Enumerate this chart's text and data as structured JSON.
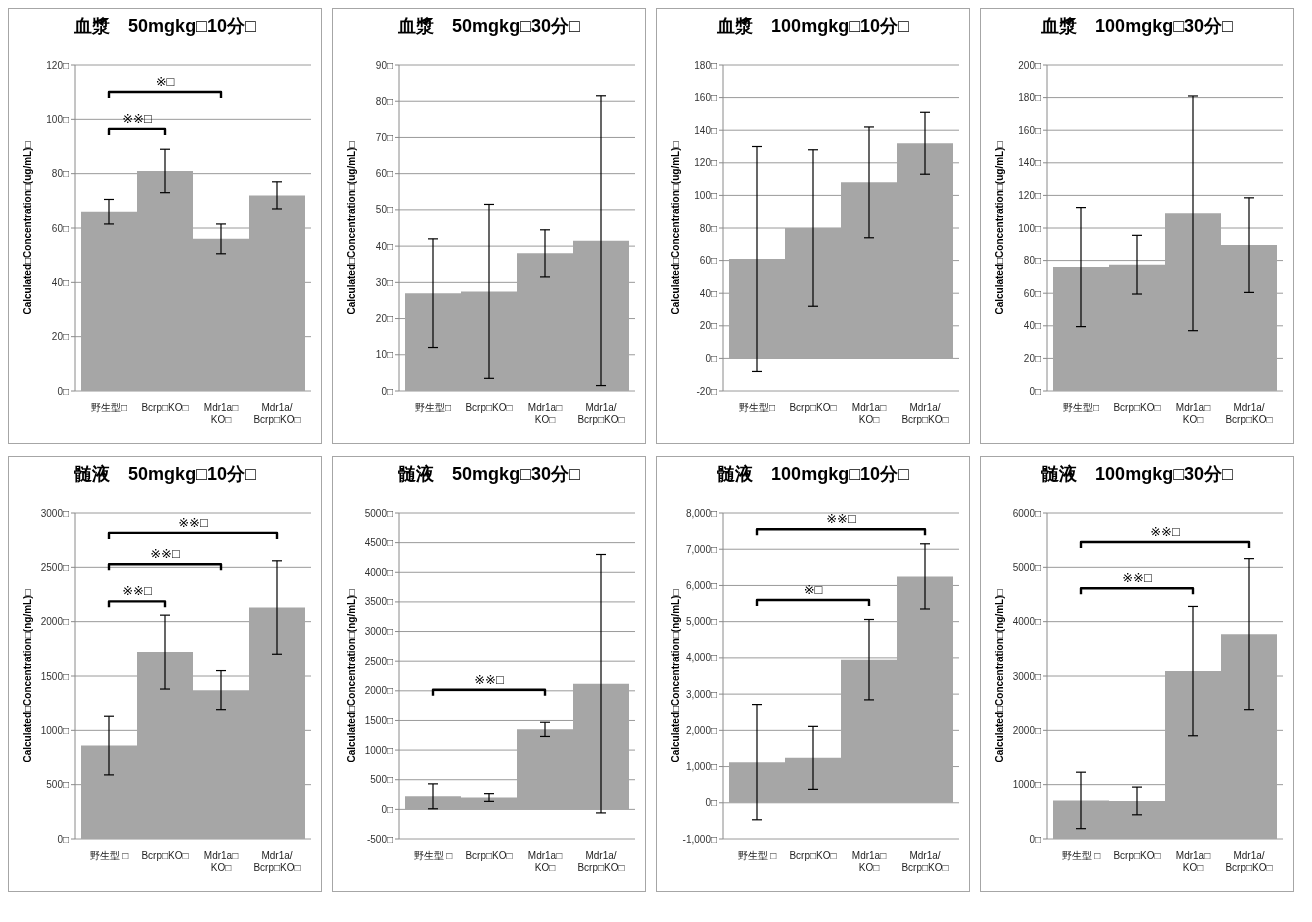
{
  "chart_data": [
    {
      "type": "bar",
      "title": "血漿　50mgkg□10分□",
      "ylabel": "Calculated□Concentration□(ug/mL)□",
      "categories": [
        "野生型□",
        "Bcrp□KO□",
        "Mdr1a□KO□",
        "Mdr1a/Bcrp□KO□"
      ],
      "values": [
        66,
        81,
        56,
        72
      ],
      "errors": [
        4.5,
        8,
        5.5,
        5
      ],
      "color": "#a6a6a6",
      "ylim": [
        0,
        120
      ],
      "yticks": [
        {
          "value": 0,
          "label": "0□"
        },
        {
          "value": 20,
          "label": "20□"
        },
        {
          "value": 40,
          "label": "40□"
        },
        {
          "value": 60,
          "label": "60□"
        },
        {
          "value": 80,
          "label": "80□"
        },
        {
          "value": 100,
          "label": "100□"
        },
        {
          "value": 120,
          "label": "120□"
        }
      ],
      "grid": "y",
      "annotations": [
        "※□",
        "※※□"
      ]
    },
    {
      "type": "bar",
      "title": "血漿　50mgkg□30分□",
      "ylabel": "Calculated□Concentration□(ug/mL)□",
      "categories": [
        "野生型□",
        "Bcrp□KO□",
        "Mdr1a□KO□",
        "Mdr1a/Bcrp□KO□"
      ],
      "values": [
        27,
        27.5,
        38,
        41.5
      ],
      "errors": [
        15,
        24,
        6.5,
        40
      ],
      "color": "#a6a6a6",
      "ylim": [
        0,
        90
      ],
      "yticks": [
        {
          "value": 0,
          "label": "0□"
        },
        {
          "value": 10,
          "label": "10□"
        },
        {
          "value": 20,
          "label": "20□"
        },
        {
          "value": 30,
          "label": "30□"
        },
        {
          "value": 40,
          "label": "40□"
        },
        {
          "value": 50,
          "label": "50□"
        },
        {
          "value": 60,
          "label": "60□"
        },
        {
          "value": 70,
          "label": "70□"
        },
        {
          "value": 80,
          "label": "80□"
        },
        {
          "value": 90,
          "label": "90□"
        }
      ],
      "grid": "y"
    },
    {
      "type": "bar",
      "title": "血漿　100mgkg□10分□",
      "ylabel": "Calculated□Concentration□(ug/mL)□",
      "categories": [
        "野生型□",
        "Bcrp□KO□",
        "Mdr1a□KO□",
        "Mdr1a/Bcrp□KO□"
      ],
      "values": [
        61,
        80,
        108,
        132
      ],
      "errors": [
        69,
        48,
        34,
        19
      ],
      "color": "#a6a6a6",
      "ylim": [
        -20,
        180
      ],
      "yticks": [
        {
          "value": -20,
          "label": "-20□"
        },
        {
          "value": 0,
          "label": "0□"
        },
        {
          "value": 20,
          "label": "20□"
        },
        {
          "value": 40,
          "label": "40□"
        },
        {
          "value": 60,
          "label": "60□"
        },
        {
          "value": 80,
          "label": "80□"
        },
        {
          "value": 100,
          "label": "100□"
        },
        {
          "value": 120,
          "label": "120□"
        },
        {
          "value": 140,
          "label": "140□"
        },
        {
          "value": 160,
          "label": "160□"
        },
        {
          "value": 180,
          "label": "180□"
        }
      ],
      "grid": "y"
    },
    {
      "type": "bar",
      "title": "血漿　100mgkg□30分□",
      "ylabel": "Calculated□Concentration□(ug/mL)□",
      "categories": [
        "野生型□",
        "Bcrp□KO□",
        "Mdr1a□KO□",
        "Mdr1a/Bcrp□KO□"
      ],
      "values": [
        76,
        77.5,
        109,
        89.5
      ],
      "errors": [
        36.5,
        18,
        72,
        29
      ],
      "color": "#a6a6a6",
      "ylim": [
        0,
        200
      ],
      "yticks": [
        {
          "value": 0,
          "label": "0□"
        },
        {
          "value": 20,
          "label": "20□"
        },
        {
          "value": 40,
          "label": "40□"
        },
        {
          "value": 60,
          "label": "60□"
        },
        {
          "value": 80,
          "label": "80□"
        },
        {
          "value": 100,
          "label": "100□"
        },
        {
          "value": 120,
          "label": "120□"
        },
        {
          "value": 140,
          "label": "140□"
        },
        {
          "value": 160,
          "label": "160□"
        },
        {
          "value": 180,
          "label": "180□"
        },
        {
          "value": 200,
          "label": "200□"
        }
      ],
      "grid": "y"
    },
    {
      "type": "bar",
      "title": "髄液　50mgkg□10分□",
      "ylabel": "Calculated□Concentration□(ng/mL)□",
      "categories": [
        "野生型 □",
        "Bcrp□KO□",
        "Mdr1a□KO□",
        "Mdr1a/Bcrp□KO□"
      ],
      "values": [
        860,
        1720,
        1370,
        2130
      ],
      "errors": [
        270,
        340,
        180,
        430
      ],
      "color": "#a6a6a6",
      "ylim": [
        0,
        3000
      ],
      "yticks": [
        {
          "value": 0,
          "label": "0□"
        },
        {
          "value": 500,
          "label": "500□"
        },
        {
          "value": 1000,
          "label": "1000□"
        },
        {
          "value": 1500,
          "label": "1500□"
        },
        {
          "value": 2000,
          "label": "2000□"
        },
        {
          "value": 2500,
          "label": "2500□"
        },
        {
          "value": 3000,
          "label": "3000□"
        }
      ],
      "grid": "y",
      "annotations": [
        "※※□",
        "※※□",
        "※※□"
      ]
    },
    {
      "type": "bar",
      "title": "髄液　50mgkg□30分□",
      "ylabel": "Calculated□Concentration□(ng/mL)□",
      "categories": [
        "野生型 □",
        "Bcrp□KO□",
        "Mdr1a□KO□",
        "Mdr1a/Bcrp□KO□"
      ],
      "values": [
        220,
        200,
        1350,
        2120
      ],
      "errors": [
        210,
        65,
        120,
        2180
      ],
      "color": "#a6a6a6",
      "ylim": [
        -500,
        5000
      ],
      "yticks": [
        {
          "value": -500,
          "label": "-500□"
        },
        {
          "value": 0,
          "label": "0□"
        },
        {
          "value": 500,
          "label": "500□"
        },
        {
          "value": 1000,
          "label": "1000□"
        },
        {
          "value": 1500,
          "label": "1500□"
        },
        {
          "value": 2000,
          "label": "2000□"
        },
        {
          "value": 2500,
          "label": "2500□"
        },
        {
          "value": 3000,
          "label": "3000□"
        },
        {
          "value": 3500,
          "label": "3500□"
        },
        {
          "value": 4000,
          "label": "4000□"
        },
        {
          "value": 4500,
          "label": "4500□"
        },
        {
          "value": 5000,
          "label": "5000□"
        }
      ],
      "grid": "y",
      "annotations": [
        "※※□"
      ]
    },
    {
      "type": "bar",
      "title": "髄液　100mgkg□10分□",
      "ylabel": "Calculated□Concentration□(ng/mL)□",
      "categories": [
        "野生型 □",
        "Bcrp□KO□",
        "Mdr1a□KO□",
        "Mdr1a/Bcrp□KO□"
      ],
      "values": [
        1120,
        1240,
        3950,
        6250
      ],
      "errors": [
        1590,
        870,
        1110,
        900
      ],
      "color": "#a6a6a6",
      "ylim": [
        -1000,
        8000
      ],
      "yticks": [
        {
          "value": -1000,
          "label": "-1,000□"
        },
        {
          "value": 0,
          "label": "0□"
        },
        {
          "value": 1000,
          "label": "1,000□"
        },
        {
          "value": 2000,
          "label": "2,000□"
        },
        {
          "value": 3000,
          "label": "3,000□"
        },
        {
          "value": 4000,
          "label": "4,000□"
        },
        {
          "value": 5000,
          "label": "5,000□"
        },
        {
          "value": 6000,
          "label": "6,000□"
        },
        {
          "value": 7000,
          "label": "7,000□"
        },
        {
          "value": 8000,
          "label": "8,000□"
        }
      ],
      "grid": "y",
      "annotations": [
        "※※□",
        "※□"
      ]
    },
    {
      "type": "bar",
      "title": "髄液　100mgkg□30分□",
      "ylabel": "Calculated□Concentration□(ng/mL)□",
      "categories": [
        "野生型 □",
        "Bcrp□KO□",
        "Mdr1a□KO□",
        "Mdr1a/Bcrp□KO□"
      ],
      "values": [
        710,
        700,
        3090,
        3770
      ],
      "errors": [
        520,
        255,
        1190,
        1390
      ],
      "color": "#a6a6a6",
      "ylim": [
        0,
        6000
      ],
      "yticks": [
        {
          "value": 0,
          "label": "0□"
        },
        {
          "value": 1000,
          "label": "1000□"
        },
        {
          "value": 2000,
          "label": "2000□"
        },
        {
          "value": 3000,
          "label": "3000□"
        },
        {
          "value": 4000,
          "label": "4000□"
        },
        {
          "value": 5000,
          "label": "5000□"
        },
        {
          "value": 6000,
          "label": "6000□"
        }
      ],
      "grid": "y",
      "annotations": [
        "※※□",
        "※※□"
      ]
    }
  ]
}
